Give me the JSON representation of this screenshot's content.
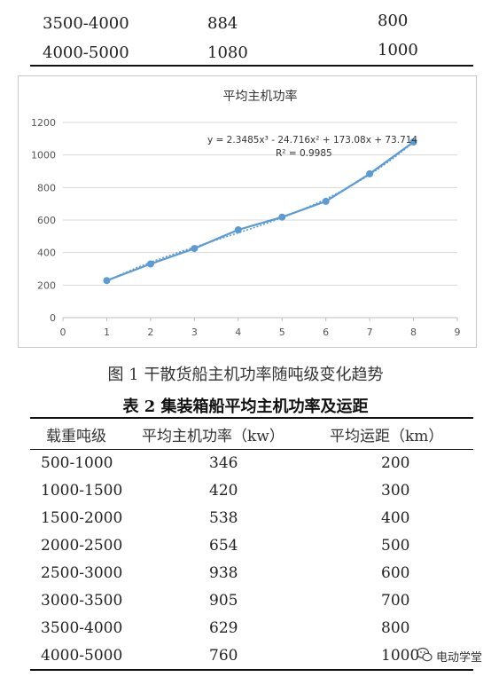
{
  "top_table": {
    "rows": [
      {
        "range": "3500-4000",
        "power": "884",
        "distance": "800"
      },
      {
        "range": "4000-5000",
        "power": "1080",
        "distance": "1000"
      }
    ]
  },
  "chart_data": {
    "type": "line",
    "title": "平均主机功率",
    "xlim": [
      0,
      9
    ],
    "ylim": [
      0,
      1200
    ],
    "x_ticks": [
      0,
      1,
      2,
      3,
      4,
      5,
      6,
      7,
      8,
      9
    ],
    "y_ticks": [
      0,
      200,
      400,
      600,
      800,
      1000,
      1200
    ],
    "x": [
      1,
      2,
      3,
      4,
      5,
      6,
      7,
      8
    ],
    "values": [
      228,
      330,
      425,
      540,
      618,
      715,
      884,
      1080
    ],
    "trendline": "polynomial-3",
    "annotation_equation": "y = 2.3485x³ - 24.716x² + 173.08x + 73.714",
    "annotation_r2": "R² = 0.9985",
    "grid": "horizontal",
    "series_color": "#5b9bd5"
  },
  "figure_caption": "图 1 干散货船主机功率随吨级变化趋势",
  "table2": {
    "title": "表 2  集装箱船平均主机功率及运距",
    "headers": [
      "载重吨级",
      "平均主机功率（kw）",
      "平均运距（km）"
    ],
    "rows": [
      {
        "range": "500-1000",
        "power": "346",
        "distance": "200"
      },
      {
        "range": "1000-1500",
        "power": "420",
        "distance": "300"
      },
      {
        "range": "1500-2000",
        "power": "538",
        "distance": "400"
      },
      {
        "range": "2000-2500",
        "power": "654",
        "distance": "500"
      },
      {
        "range": "2500-3000",
        "power": "938",
        "distance": "600"
      },
      {
        "range": "3000-3500",
        "power": "905",
        "distance": "700"
      },
      {
        "range": "3500-4000",
        "power": "629",
        "distance": "800"
      },
      {
        "range": "4000-5000",
        "power": "760",
        "distance": "1000"
      }
    ]
  },
  "watermark": {
    "text": "电动学堂",
    "icon": "wechat-icon"
  }
}
